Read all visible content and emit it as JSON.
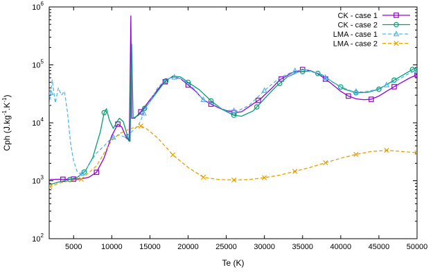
{
  "chart_data": {
    "type": "line",
    "x_label": "Te (K)",
    "y_label": "Cph (J.kg^-1.K^-1)",
    "y_label_parts": {
      "base": "Cph (J.kg",
      "sup1": "-1",
      "mid": ".K",
      "sup2": "-1",
      "end": ")"
    },
    "x_range": [
      1800,
      50000
    ],
    "y_range": [
      100,
      1000000
    ],
    "y_scale": "log",
    "x_ticks": [
      5000,
      10000,
      15000,
      20000,
      25000,
      30000,
      35000,
      40000,
      45000,
      50000
    ],
    "x_tick_labels": [
      "5000",
      "10000",
      "15000",
      "20000",
      "25000",
      "30000",
      "35000",
      "40000",
      "45000",
      "50000"
    ],
    "y_ticks": [
      100,
      1000,
      10000,
      100000,
      1000000
    ],
    "y_tick_labels": [
      {
        "base": "10",
        "exp": "2"
      },
      {
        "base": "10",
        "exp": "3"
      },
      {
        "base": "10",
        "exp": "4"
      },
      {
        "base": "10",
        "exp": "5"
      },
      {
        "base": "10",
        "exp": "6"
      }
    ],
    "legend_position": "top-right",
    "grid": false,
    "series": [
      {
        "name": "CK - case 1",
        "color": "#9400d3",
        "dash": "solid",
        "marker": "square",
        "points": [
          [
            1800,
            1050
          ],
          [
            3000,
            1060
          ],
          [
            4000,
            1060
          ],
          [
            5000,
            1070
          ],
          [
            6000,
            1080
          ],
          [
            7000,
            1150
          ],
          [
            8000,
            1400
          ],
          [
            9000,
            2500
          ],
          [
            10000,
            6000
          ],
          [
            10800,
            9500
          ],
          [
            11300,
            8500
          ],
          [
            11800,
            6000
          ],
          [
            12300,
            4800
          ],
          [
            12500,
            700000
          ],
          [
            12600,
            12000
          ],
          [
            13000,
            12000
          ],
          [
            13800,
            15500
          ],
          [
            15000,
            25000
          ],
          [
            16500,
            45000
          ],
          [
            17500,
            58000
          ],
          [
            18000,
            62000
          ],
          [
            19000,
            58000
          ],
          [
            20000,
            45000
          ],
          [
            21000,
            35000
          ],
          [
            22000,
            25000
          ],
          [
            23000,
            21000
          ],
          [
            24500,
            17000
          ],
          [
            26000,
            15000
          ],
          [
            27000,
            15500
          ],
          [
            28000,
            19000
          ],
          [
            29500,
            26000
          ],
          [
            31000,
            40000
          ],
          [
            32000,
            55000
          ],
          [
            33500,
            72000
          ],
          [
            35000,
            83000
          ],
          [
            36000,
            80000
          ],
          [
            37000,
            70000
          ],
          [
            38000,
            57000
          ],
          [
            39000,
            45000
          ],
          [
            40000,
            35000
          ],
          [
            41000,
            29000
          ],
          [
            42000,
            26000
          ],
          [
            43000,
            25000
          ],
          [
            44000,
            25500
          ],
          [
            45000,
            29000
          ],
          [
            46000,
            35000
          ],
          [
            47000,
            42000
          ],
          [
            48000,
            50000
          ],
          [
            49000,
            59000
          ],
          [
            50000,
            68000
          ]
        ],
        "markers_x": [
          3600,
          5000,
          8000,
          10800,
          13800,
          17000,
          20000,
          23000,
          26000,
          29200,
          32200,
          35000,
          38000,
          41000,
          44000,
          47000,
          50000
        ]
      },
      {
        "name": "CK - case 2",
        "color": "#009e73",
        "dash": "solid",
        "marker": "circle",
        "points": [
          [
            1800,
            850
          ],
          [
            3000,
            950
          ],
          [
            4500,
            1050
          ],
          [
            5500,
            1150
          ],
          [
            6500,
            1450
          ],
          [
            7500,
            2500
          ],
          [
            8500,
            7000
          ],
          [
            9000,
            15000
          ],
          [
            9300,
            17500
          ],
          [
            9700,
            11000
          ],
          [
            10200,
            8000
          ],
          [
            10700,
            10500
          ],
          [
            11000,
            12000
          ],
          [
            11500,
            10500
          ],
          [
            12200,
            5200
          ],
          [
            12400,
            4800
          ],
          [
            12600,
            230000
          ],
          [
            12800,
            12000
          ],
          [
            13500,
            13500
          ],
          [
            14500,
            19000
          ],
          [
            16000,
            35000
          ],
          [
            17000,
            52000
          ],
          [
            18000,
            64000
          ],
          [
            19000,
            62000
          ],
          [
            20000,
            50000
          ],
          [
            21500,
            37000
          ],
          [
            23000,
            24000
          ],
          [
            24500,
            17000
          ],
          [
            26000,
            13500
          ],
          [
            27000,
            13000
          ],
          [
            28500,
            16000
          ],
          [
            30000,
            26000
          ],
          [
            31500,
            42000
          ],
          [
            33000,
            62000
          ],
          [
            34500,
            76000
          ],
          [
            36000,
            78000
          ],
          [
            37500,
            68000
          ],
          [
            39000,
            50000
          ],
          [
            40500,
            38000
          ],
          [
            42000,
            33000
          ],
          [
            43500,
            33500
          ],
          [
            45000,
            38000
          ],
          [
            46500,
            50000
          ],
          [
            48000,
            65000
          ],
          [
            49500,
            85000
          ],
          [
            50000,
            87000
          ]
        ],
        "markers_x": [
          4500,
          6400,
          9000,
          12100,
          14300,
          17100,
          20000,
          23000,
          26000,
          29000,
          32000,
          35000,
          37000,
          40000,
          42000,
          45000,
          47000,
          49400
        ]
      },
      {
        "name": "LMA - case 1",
        "color": "#56b4e9",
        "dash": "dashed",
        "marker": "triangle",
        "points": [
          [
            1800,
            20000
          ],
          [
            2200,
            55000
          ],
          [
            2600,
            22000
          ],
          [
            3000,
            40000
          ],
          [
            3400,
            30000
          ],
          [
            3800,
            35000
          ],
          [
            4200,
            15000
          ],
          [
            4600,
            4500
          ],
          [
            5000,
            2200
          ],
          [
            5500,
            1400
          ],
          [
            6000,
            1300
          ],
          [
            6500,
            1500
          ],
          [
            7000,
            1900
          ],
          [
            8000,
            3000
          ],
          [
            9000,
            4000
          ],
          [
            10000,
            5500
          ],
          [
            11000,
            6200
          ],
          [
            11800,
            5600
          ],
          [
            12500,
            6800
          ],
          [
            13500,
            9000
          ],
          [
            14500,
            18000
          ],
          [
            16000,
            40000
          ],
          [
            17000,
            55000
          ],
          [
            18000,
            62000
          ],
          [
            19000,
            58000
          ],
          [
            20000,
            48000
          ],
          [
            21000,
            36000
          ],
          [
            22000,
            25000
          ],
          [
            23500,
            20000
          ],
          [
            25000,
            16500
          ],
          [
            26500,
            16000
          ],
          [
            28000,
            20000
          ],
          [
            30000,
            36000
          ],
          [
            32000,
            60000
          ],
          [
            34000,
            79000
          ],
          [
            35500,
            82000
          ],
          [
            37000,
            72000
          ],
          [
            38500,
            55000
          ],
          [
            40000,
            42000
          ],
          [
            41500,
            35000
          ],
          [
            43000,
            34000
          ],
          [
            44500,
            37000
          ],
          [
            46000,
            45000
          ],
          [
            47500,
            55000
          ],
          [
            49000,
            72000
          ],
          [
            50000,
            80000
          ]
        ],
        "markers_x": [
          2000,
          6100,
          10200,
          14200,
          18200,
          22000,
          26000,
          30000,
          34000,
          38000,
          42000,
          46000,
          50000
        ]
      },
      {
        "name": "LMA - case 2",
        "color": "#e69f00",
        "dash": "dashed",
        "marker": "x",
        "points": [
          [
            1800,
            780
          ],
          [
            3000,
            900
          ],
          [
            4500,
            1000
          ],
          [
            6000,
            1060
          ],
          [
            8000,
            1800
          ],
          [
            9000,
            3000
          ],
          [
            10000,
            5000
          ],
          [
            11000,
            6500
          ],
          [
            12000,
            7500
          ],
          [
            12800,
            8200
          ],
          [
            13800,
            8800
          ],
          [
            14500,
            8000
          ],
          [
            16000,
            5500
          ],
          [
            18000,
            2800
          ],
          [
            20000,
            1700
          ],
          [
            22000,
            1150
          ],
          [
            24000,
            1050
          ],
          [
            26000,
            1030
          ],
          [
            28000,
            1050
          ],
          [
            30000,
            1130
          ],
          [
            32000,
            1250
          ],
          [
            34000,
            1450
          ],
          [
            36000,
            1700
          ],
          [
            38000,
            2050
          ],
          [
            40000,
            2450
          ],
          [
            42000,
            2850
          ],
          [
            44000,
            3200
          ],
          [
            46000,
            3350
          ],
          [
            48000,
            3200
          ],
          [
            50000,
            3050
          ]
        ],
        "markers_x": [
          1900,
          6000,
          13800,
          18000,
          22000,
          26000,
          30000,
          34000,
          38000,
          42000,
          46000,
          50000
        ]
      }
    ]
  }
}
